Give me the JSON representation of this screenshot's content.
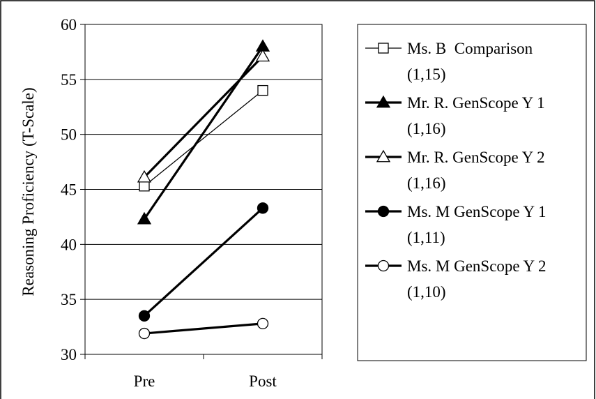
{
  "chart_data": {
    "type": "line",
    "categories": [
      "Pre",
      "Post"
    ],
    "ylabel": "Reasoning Proficiency (T-Scale)",
    "xlabel": "",
    "ylim": [
      30,
      60
    ],
    "yticks": [
      "30",
      "35",
      "40",
      "45",
      "50",
      "55",
      "60"
    ],
    "grid": true,
    "legend_position": "right",
    "series": [
      {
        "name": "Ms. B  Comparison",
        "sub": "(1,15)",
        "values": [
          45.3,
          54.0
        ],
        "marker": "square-open",
        "weight": "thin",
        "color": "#000000"
      },
      {
        "name": "Mr. R. GenScope Y 1",
        "sub": "(1,16)",
        "values": [
          42.3,
          58.0
        ],
        "marker": "triangle-filled",
        "weight": "thick",
        "color": "#000000"
      },
      {
        "name": "Mr. R. GenScope Y 2",
        "sub": "(1,16)",
        "values": [
          46.1,
          57.1
        ],
        "marker": "triangle-open",
        "weight": "thick",
        "color": "#000000"
      },
      {
        "name": "Ms. M GenScope Y 1",
        "sub": "(1,11)",
        "values": [
          33.5,
          43.3
        ],
        "marker": "circle-filled",
        "weight": "thick",
        "color": "#000000"
      },
      {
        "name": "Ms. M GenScope Y 2",
        "sub": "(1,10)",
        "values": [
          31.9,
          32.8
        ],
        "marker": "circle-open",
        "weight": "thick",
        "color": "#000000"
      }
    ]
  }
}
